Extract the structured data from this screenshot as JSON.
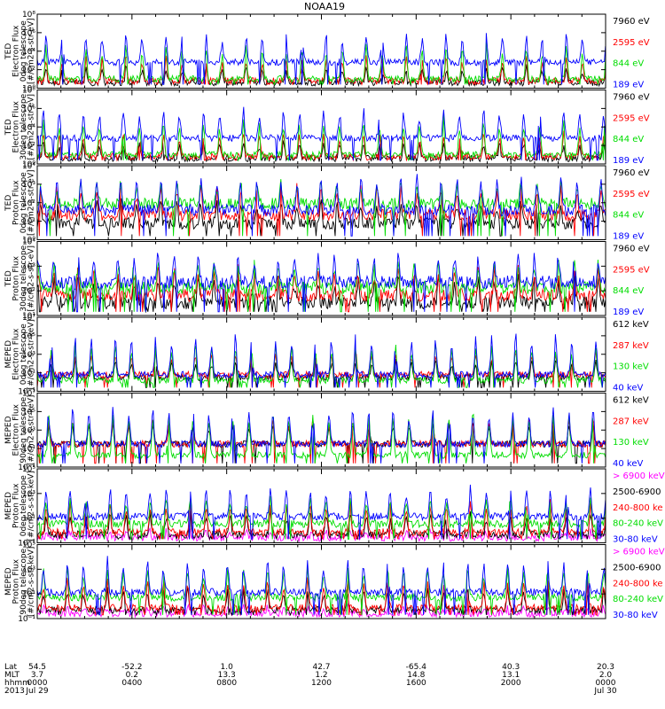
{
  "chart_data": {
    "type": "line",
    "title": "NOAA19",
    "panels": [
      {
        "ylabel_lines": [
          "TED",
          "Electron Flux",
          "0deg telescope",
          "[#/cm2-s-str-eV]"
        ],
        "yticks": [
          "10⁰",
          "10²",
          "10⁴",
          "10⁶",
          "10⁸"
        ],
        "ylog": [
          0,
          8
        ],
        "series": [
          {
            "name": "7960 eV",
            "color": "#000000",
            "base": 0.6,
            "peak": 2.5
          },
          {
            "name": "2595 eV",
            "color": "#ff0000",
            "base": 0.8,
            "peak": 3.5
          },
          {
            "name": "844 eV",
            "color": "#00dd00",
            "base": 1.0,
            "peak": 5.0
          },
          {
            "name": "189 eV",
            "color": "#0000ff",
            "base": 2.8,
            "peak": 6.2
          }
        ]
      },
      {
        "ylabel_lines": [
          "TED",
          "Electron Flux",
          "30deg telescope",
          "[#/cm2-s-str-eV]"
        ],
        "yticks": [
          "10⁰",
          "10²",
          "10⁴",
          "10⁶",
          "10⁸"
        ],
        "ylog": [
          0,
          8
        ],
        "series": [
          {
            "name": "7960 eV",
            "color": "#000000",
            "base": 0.6,
            "peak": 2.5
          },
          {
            "name": "2595 eV",
            "color": "#ff0000",
            "base": 0.8,
            "peak": 3.6
          },
          {
            "name": "844 eV",
            "color": "#00dd00",
            "base": 1.0,
            "peak": 5.0
          },
          {
            "name": "189 eV",
            "color": "#0000ff",
            "base": 2.8,
            "peak": 6.0
          }
        ]
      },
      {
        "ylabel_lines": [
          "TED",
          "Proton Flux",
          "0deg telescope",
          "[#/cm2-s-str-eV]"
        ],
        "yticks": [
          "10⁰",
          "10¹",
          "10²",
          "10³",
          "10⁴"
        ],
        "ylog": [
          0,
          4.5
        ],
        "series": [
          {
            "name": "7960 eV",
            "color": "#000000",
            "base": 1.0,
            "peak": 2.5
          },
          {
            "name": "2595 eV",
            "color": "#ff0000",
            "base": 1.5,
            "peak": 3.4
          },
          {
            "name": "844 eV",
            "color": "#00dd00",
            "base": 2.2,
            "peak": 3.6
          },
          {
            "name": "189 eV",
            "color": "#0000ff",
            "base": 1.8,
            "peak": 4.0
          }
        ]
      },
      {
        "ylabel_lines": [
          "TED",
          "Proton Flux",
          "30deg telescope",
          "[#/cm2-s-str-eV]"
        ],
        "yticks": [
          "10¹",
          "10²",
          "10³",
          "10⁴"
        ],
        "ylog": [
          0.5,
          4.5
        ],
        "series": [
          {
            "name": "7960 eV",
            "color": "#000000",
            "base": 1.2,
            "peak": 2.6
          },
          {
            "name": "2595 eV",
            "color": "#ff0000",
            "base": 1.6,
            "peak": 3.2
          },
          {
            "name": "844 eV",
            "color": "#00dd00",
            "base": 2.0,
            "peak": 3.5
          },
          {
            "name": "189 eV",
            "color": "#0000ff",
            "base": 2.3,
            "peak": 3.9
          }
        ]
      },
      {
        "ylabel_lines": [
          "MEPED",
          "Electron Flux",
          "0deg telescope",
          "[#/cm2-s-str-keV]"
        ],
        "yticks": [
          "10⁻¹",
          "10¹",
          "10³",
          "10⁵",
          "10⁷"
        ],
        "ylog": [
          -1,
          7
        ],
        "series": [
          {
            "name": "612 keV",
            "color": "#000000",
            "base": 0.5,
            "peak": 2.5
          },
          {
            "name": "287 keV",
            "color": "#ff0000",
            "base": 0.8,
            "peak": 3.5
          },
          {
            "name": "130 keV",
            "color": "#00dd00",
            "base": 0.2,
            "peak": 4.5
          },
          {
            "name": "40 keV",
            "color": "#0000ff",
            "base": 0.8,
            "peak": 5.5
          }
        ]
      },
      {
        "ylabel_lines": [
          "MEPED",
          "Electron Flux",
          "90deg telescope",
          "[#/cm2-s-str-keV]"
        ],
        "yticks": [
          "10⁻¹",
          "10¹",
          "10³",
          "10⁵",
          "10⁷"
        ],
        "ylog": [
          -1,
          7
        ],
        "series": [
          {
            "name": "612 keV",
            "color": "#000000",
            "base": 1.5,
            "peak": 4.0
          },
          {
            "name": "287 keV",
            "color": "#ff0000",
            "base": 1.5,
            "peak": 4.5
          },
          {
            "name": "130 keV",
            "color": "#00dd00",
            "base": 0.3,
            "peak": 5.2
          },
          {
            "name": "40 keV",
            "color": "#0000ff",
            "base": 1.5,
            "peak": 5.8
          }
        ]
      },
      {
        "ylabel_lines": [
          "MEPED",
          "Proton Flux",
          "0deg telescope",
          "[#/cm2-s-str-keV]"
        ],
        "yticks": [
          "10⁻¹",
          "10¹",
          "10³",
          "10⁵"
        ],
        "ylog": [
          -2,
          5
        ],
        "series": [
          {
            "name": "> 6900 keV",
            "color": "#ff00ff",
            "base": -1.5,
            "peak": -0.8
          },
          {
            "name": "2500-6900",
            "color": "#000000",
            "base": -1.2,
            "peak": 1.0
          },
          {
            "name": "240-800 ke",
            "color": "#ff0000",
            "base": -1.0,
            "peak": 2.0
          },
          {
            "name": "80-240 keV",
            "color": "#00dd00",
            "base": -0.2,
            "peak": 2.5
          },
          {
            "name": "30-80 keV",
            "color": "#0000ff",
            "base": 0.5,
            "peak": 3.5
          }
        ]
      },
      {
        "ylabel_lines": [
          "MEPED",
          "Proton Flux",
          "90deg telescope",
          "[#/cm2-s-str-keV]"
        ],
        "yticks": [
          "10⁻¹",
          "10¹",
          "10³",
          "10⁵"
        ],
        "ylog": [
          -2,
          5
        ],
        "series": [
          {
            "name": "> 6900 keV",
            "color": "#ff00ff",
            "base": -1.5,
            "peak": -0.8
          },
          {
            "name": "2500-6900",
            "color": "#000000",
            "base": -1.2,
            "peak": 1.0
          },
          {
            "name": "240-800 ke",
            "color": "#ff0000",
            "base": -1.0,
            "peak": 2.0
          },
          {
            "name": "80-240 keV",
            "color": "#00dd00",
            "base": 0.0,
            "peak": 3.0
          },
          {
            "name": "30-80 keV",
            "color": "#0000ff",
            "base": 0.5,
            "peak": 3.8
          }
        ]
      }
    ],
    "x_axis": {
      "row_labels": [
        "Lat",
        "MLT",
        "hhmm",
        "2013"
      ],
      "ticks": [
        {
          "lat": "54.5",
          "mlt": "3.7",
          "hhmm": "0000",
          "date": "Jul 29"
        },
        {
          "lat": "-52.2",
          "mlt": "0.2",
          "hhmm": "0400",
          "date": ""
        },
        {
          "lat": "1.0",
          "mlt": "13.3",
          "hhmm": "0800",
          "date": ""
        },
        {
          "lat": "42.7",
          "mlt": "1.2",
          "hhmm": "1200",
          "date": ""
        },
        {
          "lat": "-65.4",
          "mlt": "14.8",
          "hhmm": "1600",
          "date": ""
        },
        {
          "lat": "40.3",
          "mlt": "13.1",
          "hhmm": "2000",
          "date": ""
        },
        {
          "lat": "20.3",
          "mlt": "2.0",
          "hhmm": "0000",
          "date": "Jul 30"
        }
      ]
    }
  }
}
